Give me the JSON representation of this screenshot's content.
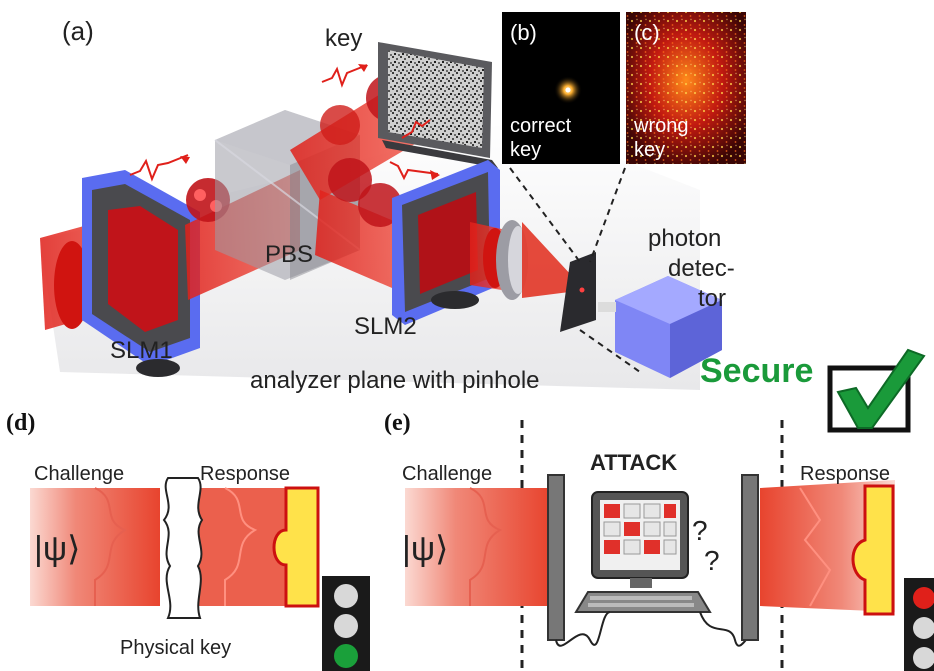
{
  "panel_a": {
    "letter": "(a)",
    "key_label": "key",
    "pbs_label": "PBS",
    "slm1_label": "SLM1",
    "slm2_label": "SLM2",
    "photon_label_1": "photon",
    "photon_label_2": "detec-",
    "photon_label_3": "tor",
    "analyzer_label": "analyzer plane with pinhole",
    "secure_label": "Secure",
    "colors": {
      "beam": "#e0201a",
      "slm_frame": "#5a6cf0",
      "detector": "#7f86f5",
      "secure": "#1a9a3a"
    }
  },
  "panel_b": {
    "letter": "(b)",
    "caption_1": "correct",
    "caption_2": "key"
  },
  "panel_c": {
    "letter": "(c)",
    "caption_1": "wrong",
    "caption_2": "key"
  },
  "panel_d": {
    "letter": "(d)",
    "challenge_label": "Challenge",
    "response_label": "Response",
    "psi_label": "|ψ⟩",
    "physical_key_label": "Physical key",
    "traffic_light_on": "green"
  },
  "panel_e": {
    "letter": "(e)",
    "challenge_label": "Challenge",
    "attack_label": "ATTACK",
    "response_label": "Response",
    "psi_label": "|ψ⟩",
    "question_marks": "?",
    "traffic_light_on": "red"
  }
}
